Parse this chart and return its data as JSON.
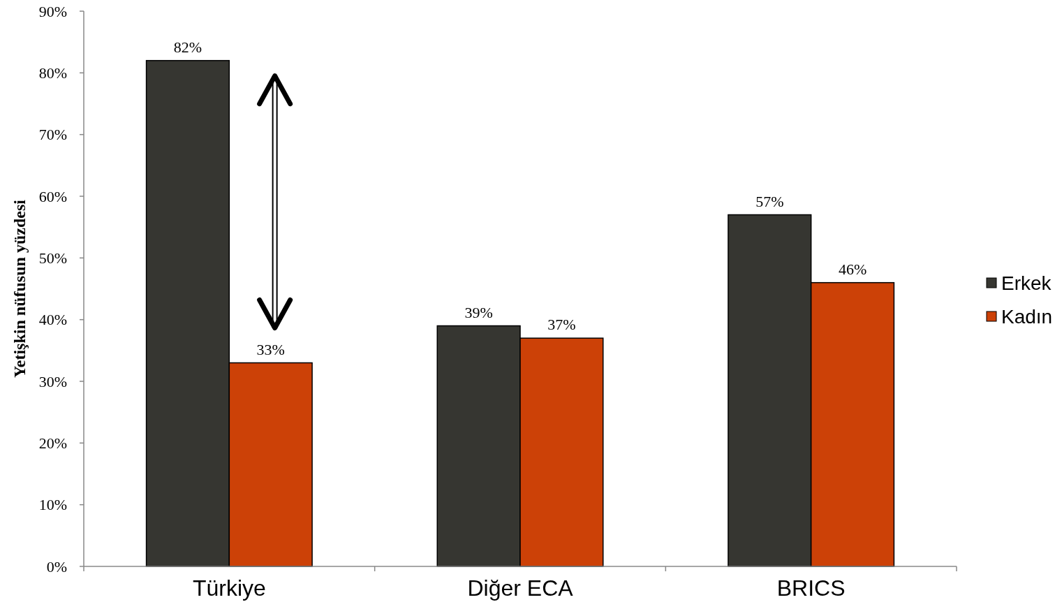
{
  "chart_data": {
    "type": "bar",
    "ylabel": "Yetişkin nüfusun yüzdesi",
    "categories": [
      "Türkiye",
      "Diğer ECA",
      "BRICS"
    ],
    "series": [
      {
        "name": "Erkek",
        "color": "#363631",
        "values": [
          82,
          39,
          57
        ],
        "value_labels": [
          "82%",
          "39%",
          "57%"
        ]
      },
      {
        "name": "Kadın",
        "color": "#cc4107",
        "values": [
          33,
          37,
          46
        ],
        "value_labels": [
          "33%",
          "37%",
          "46%"
        ]
      }
    ],
    "ylim": [
      0,
      90
    ],
    "yticks": [
      {
        "value": 0,
        "label": "0%"
      },
      {
        "value": 10,
        "label": "10%"
      },
      {
        "value": 20,
        "label": "20%"
      },
      {
        "value": 30,
        "label": "30%"
      },
      {
        "value": 40,
        "label": "40%"
      },
      {
        "value": 50,
        "label": "50%"
      },
      {
        "value": 60,
        "label": "60%"
      },
      {
        "value": 70,
        "label": "70%"
      },
      {
        "value": 80,
        "label": "80%"
      },
      {
        "value": 90,
        "label": "90%"
      }
    ],
    "grid": false,
    "legend": "right"
  }
}
